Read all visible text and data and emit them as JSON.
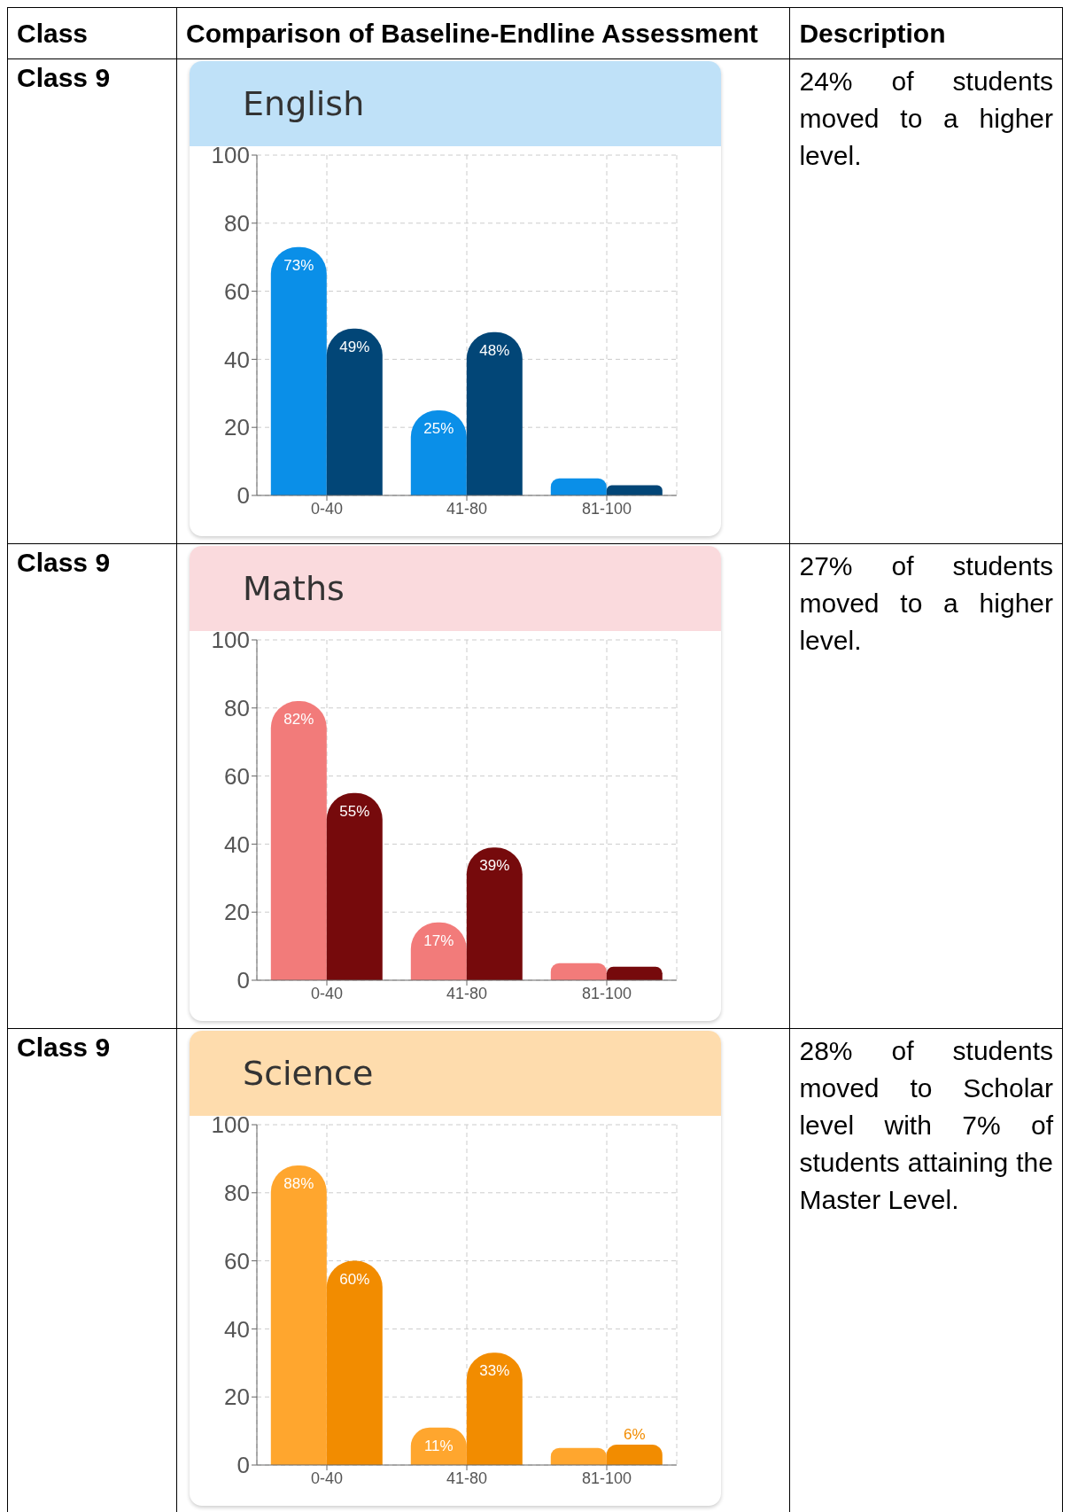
{
  "chart_data": [
    {
      "type": "bar",
      "title": "English",
      "categories": [
        "0-40",
        "41-80",
        "81-100"
      ],
      "series": [
        {
          "color": "#0a8fe8",
          "values": [
            73,
            25,
            5
          ],
          "value_labels": [
            "73%",
            "25%",
            null
          ]
        },
        {
          "color": "#024677",
          "values": [
            49,
            48,
            3
          ],
          "value_labels": [
            "49%",
            "48%",
            null
          ]
        }
      ],
      "ylim": [
        0,
        100
      ],
      "yticks": [
        0,
        20,
        40,
        60,
        80,
        100
      ],
      "grid": true,
      "legend": false,
      "annotations": [
        "Class",
        "Comparison of Baseline-Endline Assessment",
        "Description",
        "Class 9",
        "24% of students moved to a higher level."
      ]
    },
    {
      "type": "bar",
      "title": "Maths",
      "categories": [
        "0-40",
        "41-80",
        "81-100"
      ],
      "series": [
        {
          "color": "#f27b7a",
          "values": [
            82,
            17,
            5
          ],
          "value_labels": [
            "82%",
            "17%",
            null
          ]
        },
        {
          "color": "#760a0c",
          "values": [
            55,
            39,
            4
          ],
          "value_labels": [
            "55%",
            "39%",
            null
          ]
        }
      ],
      "ylim": [
        0,
        100
      ],
      "yticks": [
        0,
        20,
        40,
        60,
        80,
        100
      ],
      "grid": true,
      "legend": false,
      "annotations": [
        "Class 9",
        "27% of students moved to a higher level."
      ]
    },
    {
      "type": "bar",
      "title": "Science",
      "categories": [
        "0-40",
        "41-80",
        "81-100"
      ],
      "series": [
        {
          "color": "#ffa62e",
          "values": [
            88,
            11,
            5
          ],
          "value_labels": [
            "88%",
            "11%",
            null
          ]
        },
        {
          "color": "#f28c00",
          "values": [
            60,
            33,
            6
          ],
          "value_labels": [
            "60%",
            "33%",
            "6%"
          ]
        }
      ],
      "ylim": [
        0,
        100
      ],
      "yticks": [
        0,
        20,
        40,
        60,
        80,
        100
      ],
      "grid": true,
      "legend": false,
      "annotations": [
        "Class 9",
        "28% of students moved to Scholar level with 7% of students attaining the Master Level."
      ]
    }
  ]
}
